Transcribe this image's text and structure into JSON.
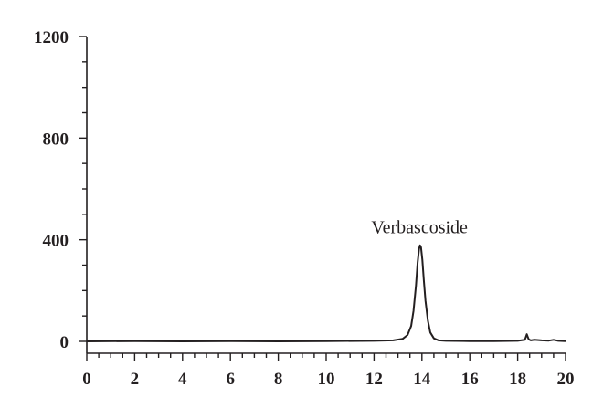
{
  "chart_data": {
    "type": "line",
    "title": "",
    "xlabel": "",
    "ylabel": "",
    "xlim": [
      0,
      20
    ],
    "ylim": [
      0,
      1200
    ],
    "x_ticks": [
      0,
      2,
      4,
      6,
      8,
      10,
      12,
      14,
      16,
      18,
      20
    ],
    "x_tick_labels": [
      "0",
      "2",
      "4",
      "6",
      "8",
      "10",
      "12",
      "14",
      "16",
      "18",
      "20"
    ],
    "x_minor_step": 0.5,
    "y_ticks": [
      0,
      400,
      800,
      1200
    ],
    "y_tick_labels": [
      "0",
      "400",
      "800",
      "1200"
    ],
    "y_minor_step": 100,
    "grid": false,
    "legend": "none",
    "annotations": [
      {
        "text": "Verbascoside",
        "x": 13.9,
        "y": 390
      }
    ],
    "series": [
      {
        "color": "#231f20",
        "x": [
          0,
          2,
          4,
          6,
          8,
          10,
          12,
          12.8,
          13.2,
          13.4,
          13.55,
          13.65,
          13.75,
          13.82,
          13.88,
          13.92,
          13.96,
          14.02,
          14.08,
          14.15,
          14.25,
          14.35,
          14.5,
          14.7,
          15.0,
          16.0,
          17.0,
          18.0,
          18.3,
          18.38,
          18.42,
          18.46,
          18.55,
          18.7,
          19.0,
          19.3,
          19.5,
          19.7,
          20.0
        ],
        "y": [
          0,
          1,
          0,
          1,
          0,
          1,
          2,
          4,
          10,
          25,
          60,
          120,
          220,
          310,
          365,
          378,
          370,
          320,
          240,
          160,
          80,
          35,
          12,
          4,
          2,
          1,
          1,
          2,
          6,
          28,
          18,
          8,
          4,
          6,
          4,
          3,
          6,
          2,
          1
        ]
      }
    ]
  }
}
